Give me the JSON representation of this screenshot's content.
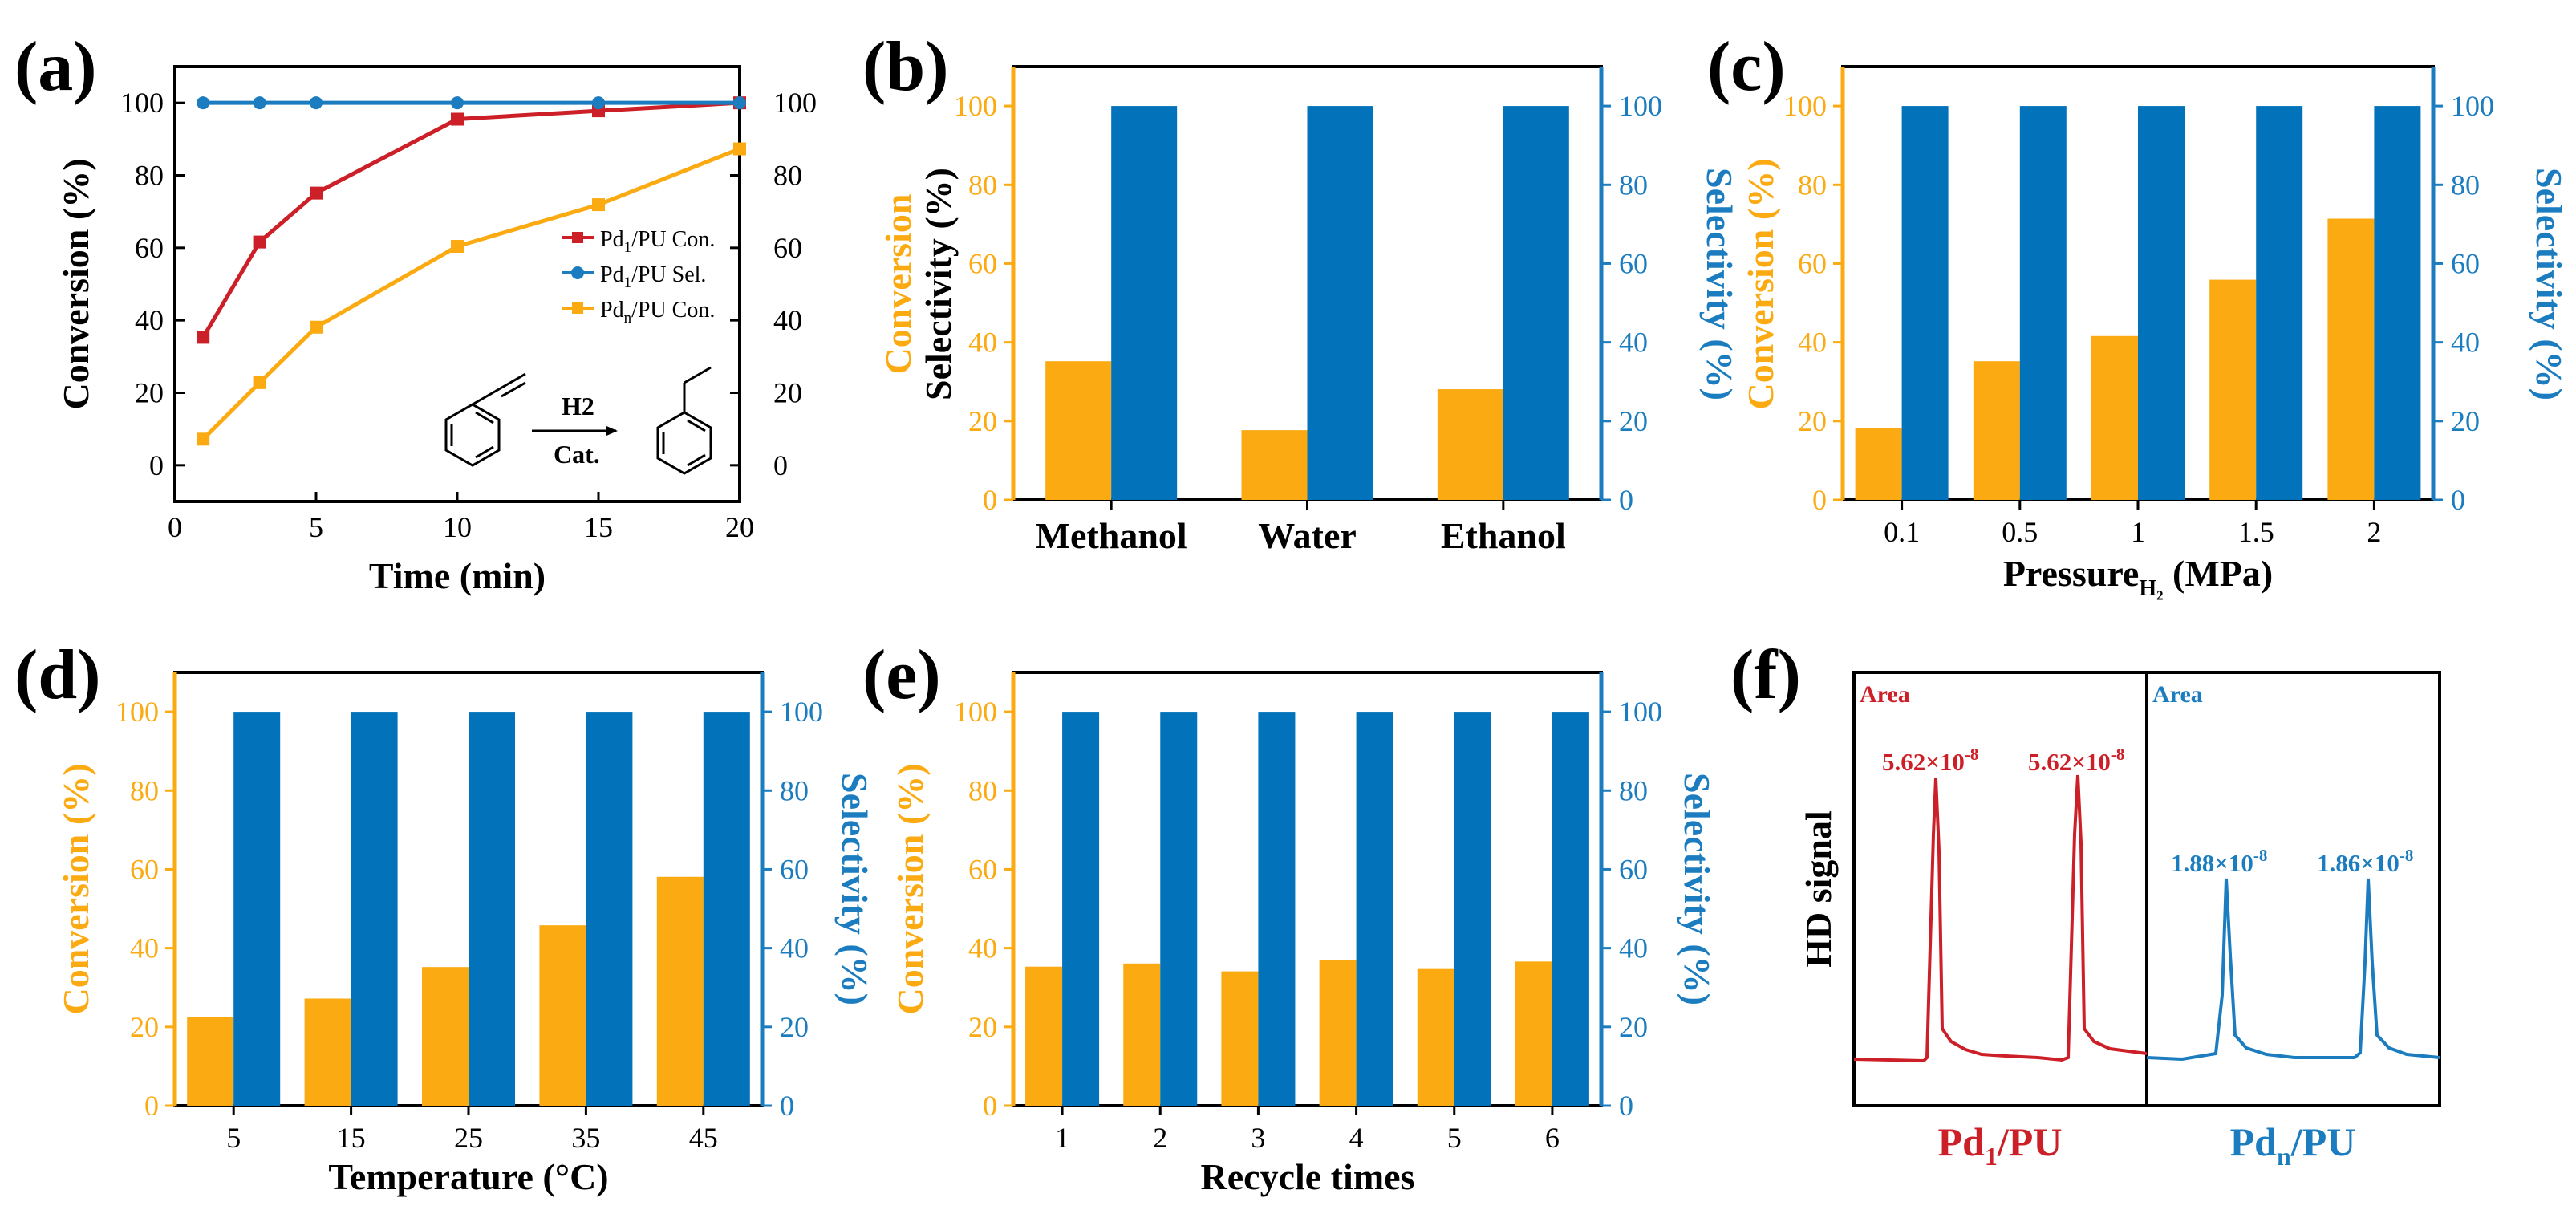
{
  "colors": {
    "red": "#cc1f27",
    "blue": "#1b7cbf",
    "orange": "#fbaa12",
    "bar_blue": "#0273bb",
    "axis": "#000000"
  },
  "panels": {
    "a": {
      "label": "(a)"
    },
    "b": {
      "label": "(b)"
    },
    "c": {
      "label": "(c)"
    },
    "d": {
      "label": "(d)"
    },
    "e": {
      "label": "(e)"
    },
    "f": {
      "label": "(f)"
    }
  },
  "chart_data": [
    {
      "id": "a",
      "type": "line",
      "xlabel": "Time (min)",
      "ylabel": "Conversion (%)",
      "xlim": [
        0,
        20
      ],
      "ylim": [
        -10,
        110
      ],
      "xticks": [
        "0",
        "5",
        "10",
        "15",
        "20"
      ],
      "yticks": [
        "0",
        "20",
        "40",
        "60",
        "80",
        "100"
      ],
      "y2ticks": [
        "0",
        "20",
        "40",
        "60",
        "80",
        "100"
      ],
      "grid": false,
      "legend_position": "right",
      "series": [
        {
          "name": "Pd1/PU Con.",
          "x": [
            1,
            3,
            5,
            10,
            15,
            20
          ],
          "values": [
            35.3,
            61.6,
            75.1,
            95.5,
            97.8,
            100
          ]
        },
        {
          "name": "Pd1/PU Sel.",
          "x": [
            1,
            3,
            5,
            10,
            15,
            20
          ],
          "values": [
            100,
            100,
            100,
            100,
            100,
            100
          ]
        },
        {
          "name": "Pdn/PU Con.",
          "x": [
            1,
            3,
            5,
            10,
            15,
            20
          ],
          "values": [
            7.2,
            22.8,
            38.1,
            60.4,
            71.9,
            87.3
          ]
        }
      ],
      "scheme": {
        "reagent": "H2",
        "catalyst": "Cat."
      }
    },
    {
      "id": "b",
      "type": "bar",
      "xlabel": "",
      "ylabel_parts": [
        "Conversion",
        "Selectivity",
        "(%)"
      ],
      "y2label": "Selectivity (%)",
      "ylim": [
        0,
        110
      ],
      "yticks": [
        "0",
        "20",
        "40",
        "60",
        "80",
        "100"
      ],
      "categories": [
        "Methanol",
        "Water",
        "Ethanol"
      ],
      "series": [
        {
          "values": [
            35.2,
            17.7,
            28.1
          ]
        },
        {
          "values": [
            100,
            100,
            100
          ]
        }
      ]
    },
    {
      "id": "c",
      "type": "bar",
      "xlabel_main": "Pressure",
      "xlabel_sub": "H₂",
      "xlabel_unit": " (MPa)",
      "ylabel": "Conversion (%)",
      "y2label": "Selectivity (%)",
      "ylim": [
        0,
        110
      ],
      "yticks": [
        "0",
        "20",
        "40",
        "60",
        "80",
        "100"
      ],
      "categories": [
        "0.1",
        "0.5",
        "1",
        "1.5",
        "2"
      ],
      "series": [
        {
          "values": [
            18.3,
            35.2,
            41.6,
            55.9,
            71.4
          ]
        },
        {
          "values": [
            100,
            100,
            100,
            100,
            100
          ]
        }
      ]
    },
    {
      "id": "d",
      "type": "bar",
      "xlabel": "Temperature (°C)",
      "ylabel": "Conversion (%)",
      "y2label": "Selectivity (%)",
      "ylim": [
        0,
        110
      ],
      "yticks": [
        "0",
        "20",
        "40",
        "60",
        "80",
        "100"
      ],
      "categories": [
        "5",
        "15",
        "25",
        "35",
        "45"
      ],
      "series": [
        {
          "values": [
            22.6,
            27.2,
            35.2,
            45.8,
            58.1
          ]
        },
        {
          "values": [
            100,
            100,
            100,
            100,
            100
          ]
        }
      ]
    },
    {
      "id": "e",
      "type": "bar",
      "xlabel": "Recycle times",
      "ylabel": "Conversion (%)",
      "y2label": "Selectivity (%)",
      "ylim": [
        0,
        110
      ],
      "yticks": [
        "0",
        "20",
        "40",
        "60",
        "80",
        "100"
      ],
      "categories": [
        "1",
        "2",
        "3",
        "4",
        "5",
        "6"
      ],
      "series": [
        {
          "values": [
            35.3,
            36.1,
            34.1,
            36.9,
            34.7,
            36.6
          ]
        },
        {
          "values": [
            100,
            100,
            100,
            100,
            100,
            100
          ]
        }
      ]
    },
    {
      "id": "f",
      "type": "line",
      "ylabel": "HD signal",
      "area_label": "Area",
      "sections": [
        {
          "name": "Pd1/PU",
          "name_main": "Pd",
          "name_sub": "1",
          "name_rest": "/PU",
          "peaks": [
            {
              "mantissa": "5.62×10",
              "exp": "-8"
            },
            {
              "mantissa": "5.62×10",
              "exp": "-8"
            }
          ]
        },
        {
          "name": "Pdn/PU",
          "name_main": "Pd",
          "name_sub": "n",
          "name_rest": "/PU",
          "peaks": [
            {
              "mantissa": "1.88×10",
              "exp": "-8"
            },
            {
              "mantissa": "1.86×10",
              "exp": "-8"
            }
          ]
        }
      ]
    }
  ]
}
